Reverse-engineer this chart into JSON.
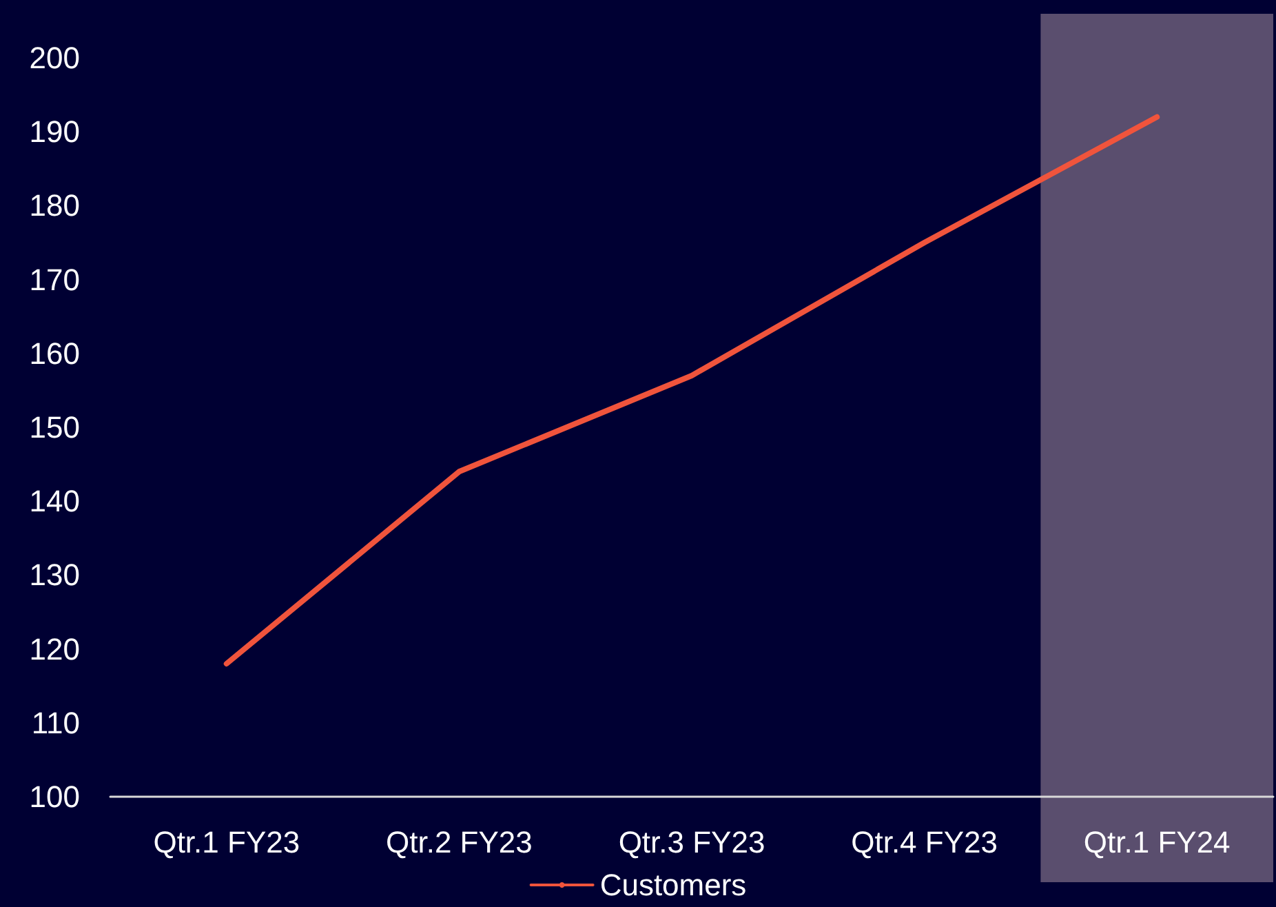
{
  "chart_data": {
    "type": "line",
    "categories": [
      "Qtr.1 FY23",
      "Qtr.2 FY23",
      "Qtr.3 FY23",
      "Qtr.4 FY23",
      "Qtr.1 FY24"
    ],
    "series": [
      {
        "name": "Customers",
        "color": "#f0543c",
        "values": [
          118,
          144,
          157,
          175,
          192
        ]
      }
    ],
    "ylim": [
      100,
      200
    ],
    "yticks": [
      100,
      110,
      120,
      130,
      140,
      150,
      160,
      170,
      180,
      190,
      200
    ],
    "bands": [
      {
        "axis": "x",
        "from": "Qtr.1 FY24",
        "to": "Qtr.1 FY24",
        "color": "#5a4e6e"
      }
    ],
    "grid": false,
    "legend": "bottom",
    "marker": "none",
    "line_style": "solid"
  }
}
